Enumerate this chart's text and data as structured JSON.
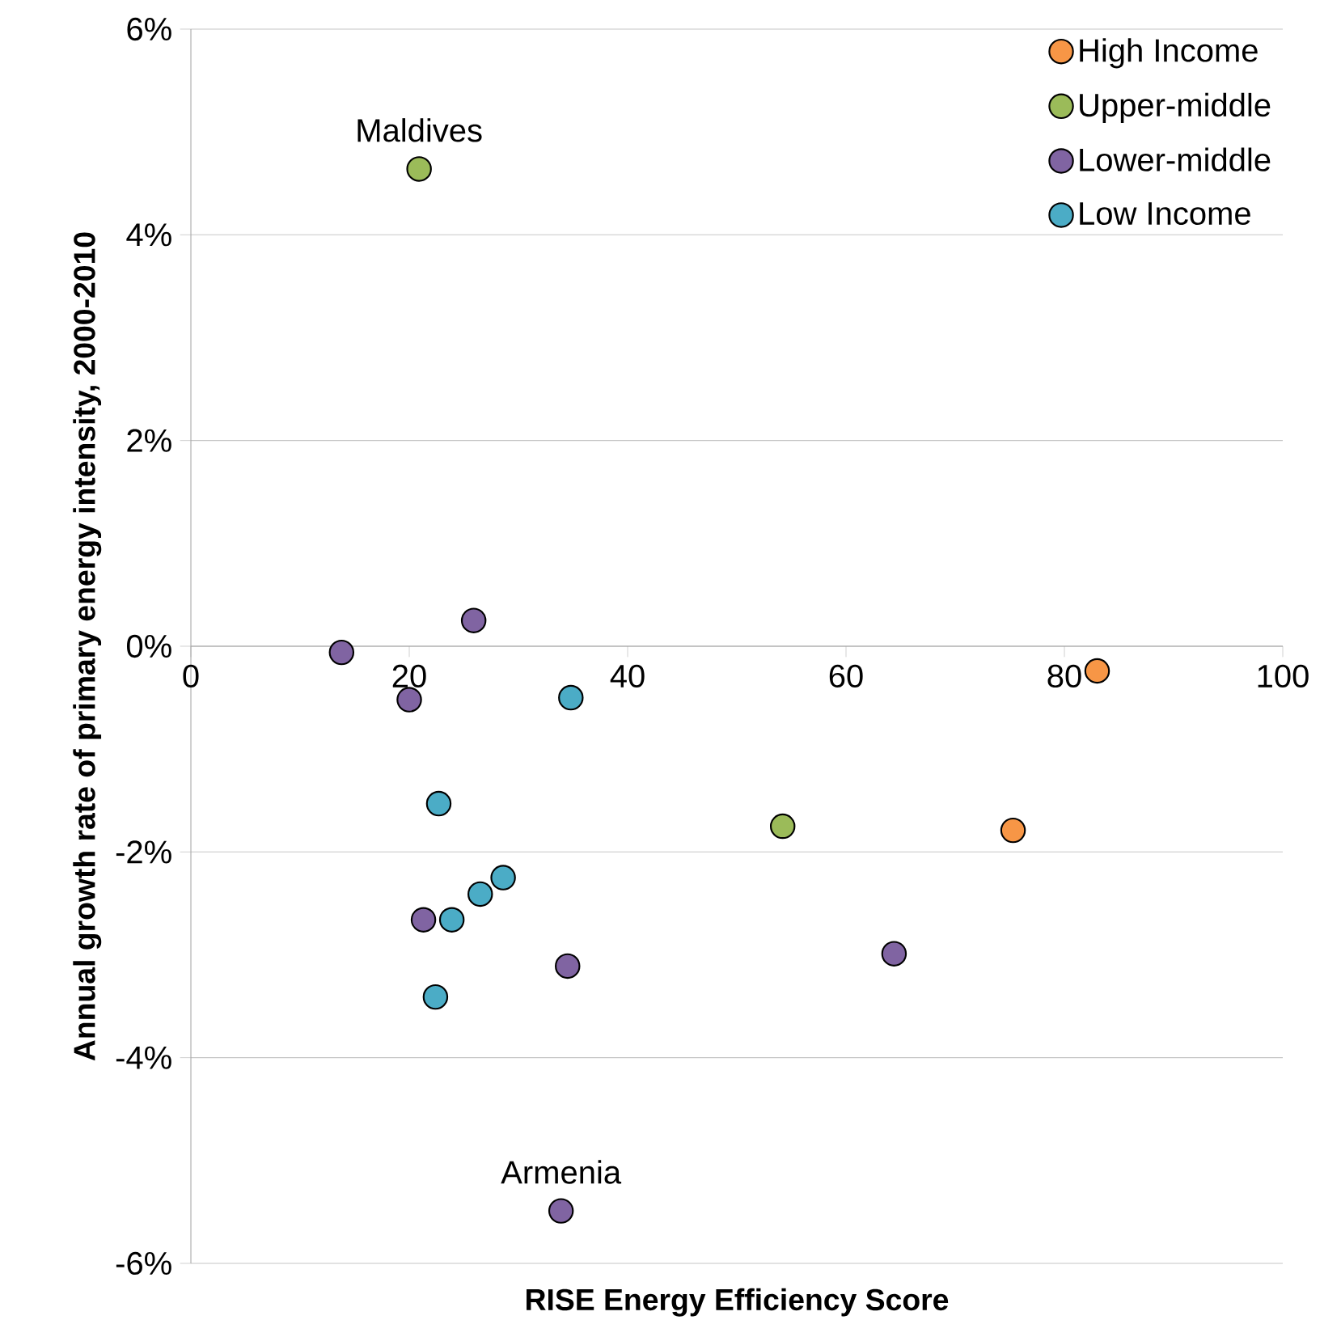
{
  "chart_data": {
    "type": "scatter",
    "xlabel": "RISE Energy Efficiency Score",
    "ylabel": "Annual growth rate of primary energy intensity, 2000-2010",
    "xlim": [
      0,
      100
    ],
    "xticks": [
      0,
      20,
      40,
      60,
      80,
      100
    ],
    "ylim": [
      -6,
      6
    ],
    "yticks": [
      {
        "value": -6,
        "label": "-6%"
      },
      {
        "value": -4,
        "label": "-4%"
      },
      {
        "value": -2,
        "label": "-2%"
      },
      {
        "value": 0,
        "label": "0%"
      },
      {
        "value": 2,
        "label": "2%"
      },
      {
        "value": 4,
        "label": "4%"
      },
      {
        "value": 6,
        "label": "6%"
      }
    ],
    "grid": "y",
    "legend": "top right",
    "marker": "circle",
    "series": [
      {
        "name": "High Income",
        "color": "#f79646",
        "x": [
          83.0,
          75.3
        ],
        "values": [
          -0.24,
          -1.79
        ]
      },
      {
        "name": "Upper-middle",
        "color": "#9bbb59",
        "x": [
          20.9,
          54.2
        ],
        "values": [
          4.64,
          -1.75
        ]
      },
      {
        "name": "Lower-middle",
        "color": "#8064a2",
        "x": [
          13.8,
          25.9,
          20.0,
          21.3,
          34.5,
          64.4,
          33.9
        ],
        "values": [
          -0.06,
          0.25,
          -0.52,
          -2.66,
          -3.11,
          -2.99,
          -5.49
        ]
      },
      {
        "name": "Low Income",
        "color": "#4bacc6",
        "x": [
          34.8,
          22.7,
          23.9,
          26.5,
          28.6,
          22.4
        ],
        "values": [
          -0.5,
          -1.53,
          -2.66,
          -2.41,
          -2.25,
          -3.41
        ]
      }
    ],
    "annotations": [
      {
        "text": "Maldives",
        "x": 20.9,
        "y": 4.64
      },
      {
        "text": "Armenia",
        "x": 33.9,
        "y": -5.49
      }
    ]
  }
}
